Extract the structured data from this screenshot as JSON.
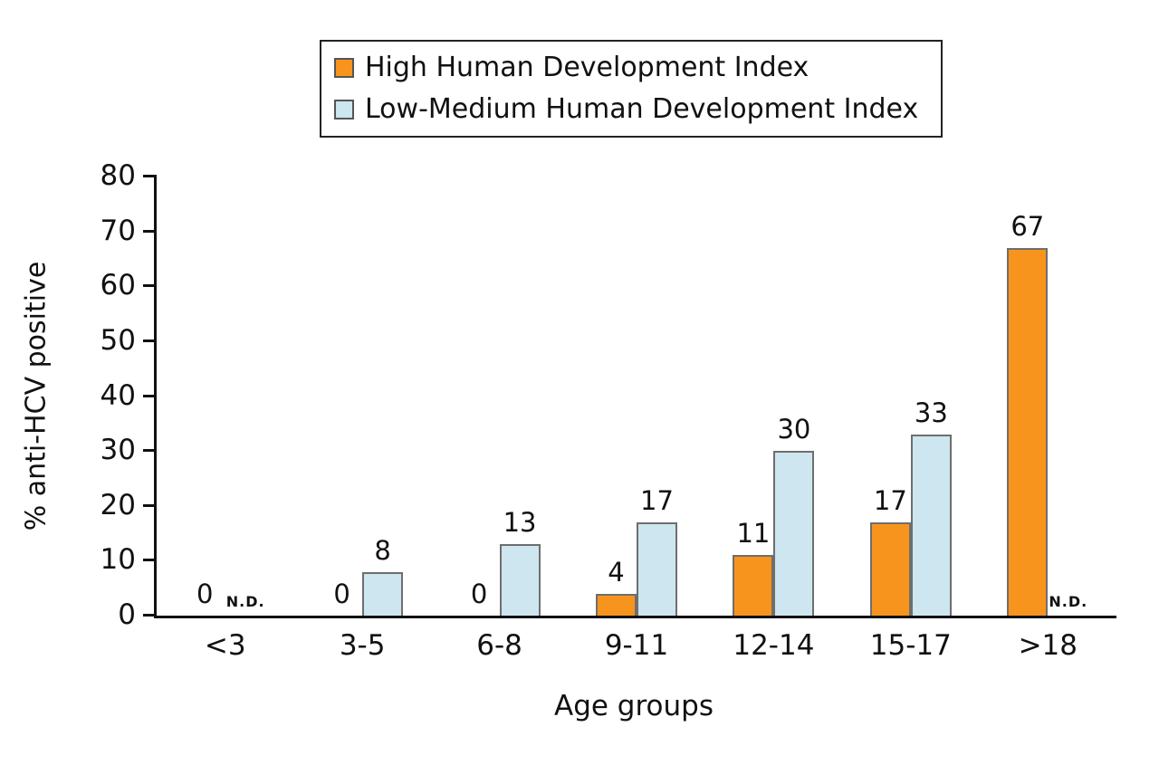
{
  "chart_data": {
    "type": "bar",
    "title": "",
    "xlabel": "Age groups",
    "ylabel": "% anti-HCV positive",
    "ylim": [
      0,
      80
    ],
    "ytick_step": 10,
    "grid": false,
    "legend_position": "top",
    "categories": [
      "<3",
      "3-5",
      "6-8",
      "9-11",
      "12-14",
      "15-17",
      ">18"
    ],
    "no_data_label": "N.D.",
    "series": [
      {
        "name": "High Human Development Index",
        "color": "#F7941E",
        "border_color": "#6e6e6e",
        "values": [
          0,
          0,
          0,
          4,
          11,
          17,
          67
        ],
        "labels": [
          "0",
          "0",
          "0",
          "4",
          "11",
          "17",
          "67"
        ]
      },
      {
        "name": "Low-Medium Human Development Index",
        "color": "#CDE6EF",
        "border_color": "#6e6e6e",
        "values": [
          null,
          8,
          13,
          17,
          30,
          33,
          null
        ],
        "labels": [
          "N.D.",
          "8",
          "13",
          "17",
          "30",
          "33",
          "N.D."
        ]
      }
    ]
  }
}
